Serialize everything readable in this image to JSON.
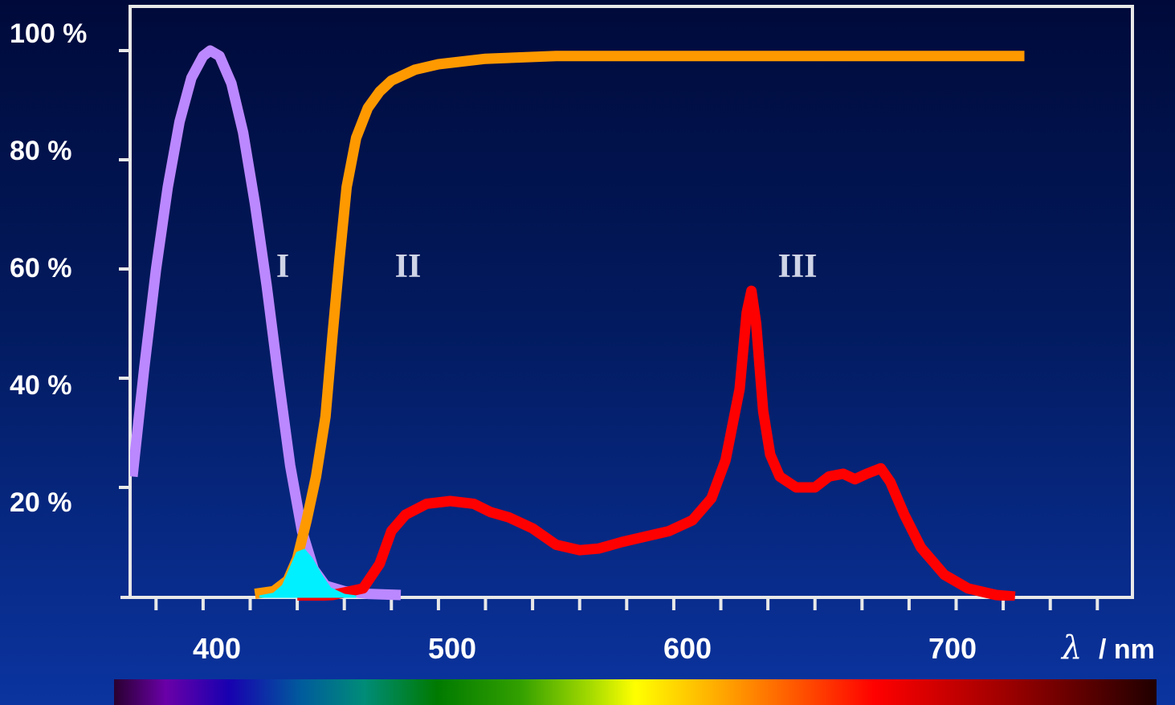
{
  "chart_data": {
    "type": "line",
    "xlabel_symbol": "λ",
    "xlabel_unit": "/ nm",
    "x_ticks": [
      400,
      500,
      600,
      700
    ],
    "y_ticks": [
      "20 %",
      "40 %",
      "60 %",
      "80 %",
      "100 %"
    ],
    "xlim": [
      370,
      770
    ],
    "ylim": [
      0,
      100
    ],
    "grid": false,
    "series": [
      {
        "label": "I",
        "color": "#bb88ff",
        "points": [
          [
            370,
            22
          ],
          [
            375,
            42
          ],
          [
            380,
            60
          ],
          [
            385,
            75
          ],
          [
            390,
            87
          ],
          [
            395,
            95
          ],
          [
            400,
            99
          ],
          [
            403,
            100
          ],
          [
            407,
            99
          ],
          [
            412,
            94
          ],
          [
            417,
            85
          ],
          [
            422,
            72
          ],
          [
            427,
            57
          ],
          [
            432,
            40
          ],
          [
            437,
            24
          ],
          [
            442,
            12
          ],
          [
            447,
            5
          ],
          [
            452,
            2
          ],
          [
            460,
            1
          ],
          [
            470,
            0.5
          ],
          [
            484,
            0.3
          ]
        ]
      },
      {
        "label": "II",
        "color": "#ff9900",
        "points": [
          [
            422,
            0.5
          ],
          [
            430,
            1
          ],
          [
            436,
            3
          ],
          [
            440,
            7
          ],
          [
            444,
            14
          ],
          [
            448,
            22
          ],
          [
            452,
            33
          ],
          [
            455,
            48
          ],
          [
            458,
            62
          ],
          [
            461,
            75
          ],
          [
            465,
            84
          ],
          [
            470,
            89.5
          ],
          [
            475,
            92.5
          ],
          [
            480,
            94.5
          ],
          [
            490,
            96.5
          ],
          [
            500,
            97.5
          ],
          [
            520,
            98.5
          ],
          [
            550,
            99
          ],
          [
            600,
            99
          ],
          [
            650,
            99
          ],
          [
            700,
            99
          ],
          [
            749,
            99
          ]
        ]
      },
      {
        "label": "III",
        "color": "#ff0000",
        "points": [
          [
            440,
            0
          ],
          [
            455,
            0.3
          ],
          [
            468,
            1.5
          ],
          [
            475,
            6
          ],
          [
            480,
            12
          ],
          [
            486,
            15
          ],
          [
            495,
            17
          ],
          [
            505,
            17.5
          ],
          [
            515,
            17
          ],
          [
            522,
            15.5
          ],
          [
            530,
            14.5
          ],
          [
            540,
            12.5
          ],
          [
            550,
            9.5
          ],
          [
            560,
            8.5
          ],
          [
            568,
            8.8
          ],
          [
            578,
            10
          ],
          [
            588,
            11
          ],
          [
            598,
            12
          ],
          [
            608,
            14
          ],
          [
            616,
            18
          ],
          [
            622,
            25
          ],
          [
            628,
            38
          ],
          [
            631,
            52
          ],
          [
            633,
            56
          ],
          [
            635,
            50
          ],
          [
            638,
            34
          ],
          [
            641,
            26
          ],
          [
            645,
            22
          ],
          [
            652,
            20
          ],
          [
            660,
            20
          ],
          [
            666,
            22
          ],
          [
            672,
            22.5
          ],
          [
            677,
            21.5
          ],
          [
            682,
            22.5
          ],
          [
            688,
            23.5
          ],
          [
            692,
            21
          ],
          [
            698,
            15
          ],
          [
            705,
            9
          ],
          [
            715,
            4
          ],
          [
            725,
            1.5
          ],
          [
            737,
            0.3
          ],
          [
            745,
            0
          ]
        ]
      },
      {
        "label": "",
        "color": "#00f0ff",
        "fill": true,
        "points": [
          [
            424,
            0
          ],
          [
            430,
            0.5
          ],
          [
            434,
            2
          ],
          [
            437,
            5
          ],
          [
            440,
            8
          ],
          [
            443,
            8.5
          ],
          [
            446,
            7
          ],
          [
            450,
            4
          ],
          [
            454,
            1.5
          ],
          [
            460,
            0.3
          ],
          [
            465,
            0
          ]
        ]
      }
    ]
  },
  "colors": {
    "background_top": "#000a3a",
    "background_bottom": "#0b34a0",
    "axes": "#e8e8e8",
    "label_text": "#ffffff",
    "curve_label_text": "#cfd4e6"
  }
}
